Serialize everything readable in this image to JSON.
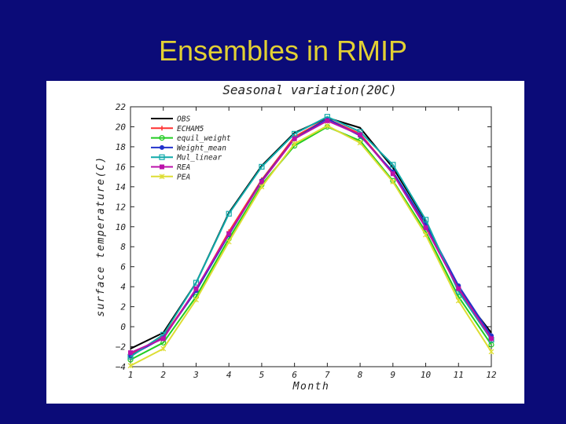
{
  "slide": {
    "title": "Ensembles in RMIP"
  },
  "chart_data": {
    "type": "line",
    "title": "Seasonal variation(20C)",
    "xlabel": "Month",
    "ylabel": "surface temperature(C)",
    "x": [
      1,
      2,
      3,
      4,
      5,
      6,
      7,
      8,
      9,
      10,
      11,
      12
    ],
    "xlim": [
      1,
      12
    ],
    "ylim": [
      -4,
      22
    ],
    "yticks": [
      -4,
      -2,
      0,
      2,
      4,
      6,
      8,
      10,
      12,
      14,
      16,
      18,
      20,
      22
    ],
    "grid": false,
    "legend_position": "top-left",
    "series": [
      {
        "name": "OBS",
        "color": "#000000",
        "marker": "none",
        "values": [
          -2.2,
          -0.6,
          4.4,
          11.4,
          16.1,
          19.4,
          20.9,
          19.9,
          15.9,
          10.6,
          3.6,
          -0.6
        ]
      },
      {
        "name": "ECHAM5",
        "color": "#ff3030",
        "marker": "plus",
        "values": [
          -2.8,
          -1.0,
          3.7,
          9.5,
          14.7,
          19.0,
          20.8,
          19.3,
          15.4,
          10.1,
          3.9,
          -1.0
        ]
      },
      {
        "name": "equil_weight",
        "color": "#22cc22",
        "marker": "circle",
        "values": [
          -3.3,
          -1.6,
          3.0,
          8.8,
          14.2,
          18.1,
          20.0,
          18.6,
          14.6,
          9.5,
          3.0,
          -1.8
        ]
      },
      {
        "name": "Weight_mean",
        "color": "#2233cc",
        "marker": "dot",
        "values": [
          -2.9,
          -1.1,
          3.6,
          9.2,
          14.6,
          18.8,
          20.8,
          19.1,
          15.5,
          10.3,
          4.1,
          -0.9
        ]
      },
      {
        "name": "Mul_linear",
        "color": "#11aaaa",
        "marker": "square",
        "values": [
          -3.0,
          -0.8,
          4.4,
          11.3,
          16.0,
          19.3,
          21.0,
          19.5,
          16.2,
          10.7,
          3.5,
          -1.3
        ]
      },
      {
        "name": "REA",
        "color": "#bb11aa",
        "marker": "square-filled",
        "values": [
          -2.6,
          -1.2,
          3.8,
          9.3,
          14.5,
          18.8,
          20.6,
          19.2,
          15.3,
          9.9,
          3.8,
          -1.2
        ]
      },
      {
        "name": "PEA",
        "color": "#dddd33",
        "marker": "star",
        "values": [
          -3.9,
          -2.2,
          2.7,
          8.5,
          14.0,
          18.3,
          20.1,
          18.4,
          14.5,
          9.2,
          2.6,
          -2.5
        ]
      }
    ]
  }
}
